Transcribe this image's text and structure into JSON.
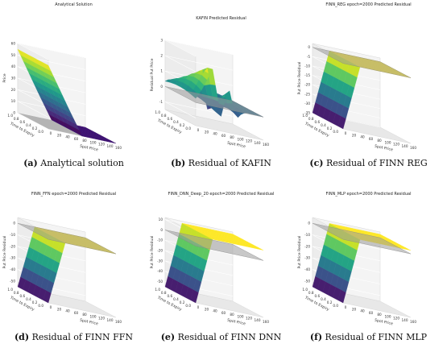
{
  "figure": {
    "panels": [
      {
        "id": "a",
        "letter": "(a)",
        "caption": "Analytical solution",
        "title": "Analytical Solution"
      },
      {
        "id": "b",
        "letter": "(b)",
        "caption": "Residual of KAFIN",
        "title": "KAFIN Predicted Residual"
      },
      {
        "id": "c",
        "letter": "(c)",
        "caption": "Residual of FINN REG",
        "title": "FINN_REG epoch=2000 Predicted Residual"
      },
      {
        "id": "d",
        "letter": "(d)",
        "caption": "Residual of FINN FFN",
        "title": "FINN_FFN epoch=2000 Predicted Residual"
      },
      {
        "id": "e",
        "letter": "(e)",
        "caption": "Residual of FINN DNN",
        "title": "FINN_DNN_Deep_20 epoch=2000 Predicted Residual"
      },
      {
        "id": "f",
        "letter": "(f)",
        "caption": "Residual of FINN MLP",
        "title": "FINN_MLP epoch=2000 Predicted Residual"
      }
    ]
  },
  "chart_data": [
    {
      "type": "surface3d",
      "title": "Analytical Solution",
      "xlabel": "Spot Price",
      "ylabel": "Time to Expiry",
      "zlabel": "Price",
      "zlabel_case": "a",
      "x_ticks": [
        "0",
        "20",
        "40",
        "60",
        "80",
        "100",
        "120",
        "140",
        "160"
      ],
      "y_ticks": [
        "1.0",
        "0.8",
        "0.6",
        "0.4",
        "0.2",
        "0.0"
      ],
      "z_ticks": [
        "0",
        "10",
        "20",
        "30",
        "40",
        "50",
        "60"
      ],
      "xlim": [
        0,
        160
      ],
      "ylim": [
        0,
        1
      ],
      "zlim": [
        0,
        60
      ],
      "plane_z": null,
      "profile": {
        "x": [
          0,
          50,
          80,
          160
        ],
        "z": [
          55,
          20,
          0,
          0
        ]
      },
      "colormap": "viridis",
      "fill_color": "#aaaaaa"
    },
    {
      "type": "surface3d",
      "title": "KAFIN Predicted Residual",
      "xlabel": "Spot Price",
      "ylabel": "Time to Expiry",
      "zlabel": "Residual Put Price",
      "x_ticks": [
        "0",
        "20",
        "40",
        "60",
        "80",
        "100",
        "120",
        "140",
        "160"
      ],
      "y_ticks": [
        "1.0",
        "0.8",
        "0.6",
        "0.4",
        "0.2",
        "0.0"
      ],
      "z_ticks": [
        "-1",
        "0",
        "1",
        "2",
        "3"
      ],
      "xlim": [
        0,
        160
      ],
      "ylim": [
        0,
        1
      ],
      "zlim": [
        -1.5,
        3
      ],
      "plane_z": 0,
      "profile": {
        "x": [
          0,
          40,
          60,
          80,
          100,
          120,
          160
        ],
        "z": [
          0.5,
          2.4,
          -0.6,
          2.0,
          -1.3,
          0.3,
          0
        ]
      },
      "colormap": "viridis"
    },
    {
      "type": "surface3d",
      "title": "FINN_REG epoch=2000 Predicted Residual",
      "xlabel": "Spot Price",
      "ylabel": "Time to Expiry",
      "zlabel": "Put Price Residual",
      "x_ticks": [
        "0",
        "20",
        "40",
        "60",
        "80",
        "100",
        "120",
        "140",
        "160"
      ],
      "y_ticks": [
        "1.0",
        "0.8",
        "0.6",
        "0.4",
        "0.2",
        "0.0"
      ],
      "z_ticks": [
        "-35",
        "-30",
        "-25",
        "-20",
        "-15",
        "-10",
        "-5",
        "0"
      ],
      "xlim": [
        0,
        160
      ],
      "ylim": [
        0,
        1
      ],
      "zlim": [
        -35,
        2
      ],
      "plane_z": 0,
      "profile": {
        "x": [
          0,
          40,
          160
        ],
        "z": [
          -35,
          0,
          0
        ]
      },
      "colormap": "viridis"
    },
    {
      "type": "surface3d",
      "title": "FINN_FFN epoch=2000 Predicted Residual",
      "xlabel": "Spot Price",
      "ylabel": "Time to Expiry",
      "zlabel": "Put Price Residual",
      "x_ticks": [
        "0",
        "20",
        "40",
        "60",
        "80",
        "100",
        "120",
        "140",
        "160"
      ],
      "y_ticks": [
        "1.0",
        "0.8",
        "0.6",
        "0.4",
        "0.2",
        "0.0"
      ],
      "z_ticks": [
        "-50",
        "-40",
        "-30",
        "-20",
        "-10",
        "0"
      ],
      "xlim": [
        0,
        160
      ],
      "ylim": [
        0,
        1
      ],
      "zlim": [
        -55,
        5
      ],
      "plane_z": 0,
      "profile": {
        "x": [
          0,
          40,
          160
        ],
        "z": [
          -55,
          0,
          0
        ]
      },
      "colormap": "viridis"
    },
    {
      "type": "surface3d",
      "title": "FINN_DNN_Deep_20 epoch=2000 Predicted Residual",
      "xlabel": "Spot Price",
      "ylabel": "Time to Expiry",
      "zlabel": "Put Price Residual",
      "x_ticks": [
        "0",
        "20",
        "40",
        "60",
        "80",
        "100",
        "120",
        "140",
        "160"
      ],
      "y_ticks": [
        "1.0",
        "0.8",
        "0.6",
        "0.4",
        "0.2",
        "0.0"
      ],
      "z_ticks": [
        "-50",
        "-40",
        "-30",
        "-20",
        "-10",
        "0",
        "10"
      ],
      "xlim": [
        0,
        160
      ],
      "ylim": [
        0,
        1
      ],
      "zlim": [
        -55,
        12
      ],
      "plane_z": 0,
      "profile": {
        "x": [
          0,
          40,
          160
        ],
        "z": [
          -55,
          10,
          10
        ]
      },
      "colormap": "viridis"
    },
    {
      "type": "surface3d",
      "title": "FINN_MLP epoch=2000 Predicted Residual",
      "xlabel": "Spot Price",
      "ylabel": "Time to Expiry",
      "zlabel": "Put Price Residual",
      "x_ticks": [
        "0",
        "20",
        "40",
        "60",
        "80",
        "100",
        "120",
        "140",
        "160"
      ],
      "y_ticks": [
        "1.0",
        "0.8",
        "0.6",
        "0.4",
        "0.2",
        "0.0"
      ],
      "z_ticks": [
        "-50",
        "-40",
        "-30",
        "-20",
        "-10",
        "0"
      ],
      "xlim": [
        0,
        160
      ],
      "ylim": [
        0,
        1
      ],
      "zlim": [
        -55,
        5
      ],
      "plane_z": 0,
      "profile": {
        "x": [
          0,
          40,
          160
        ],
        "z": [
          -55,
          3,
          3
        ]
      },
      "colormap": "viridis"
    }
  ]
}
